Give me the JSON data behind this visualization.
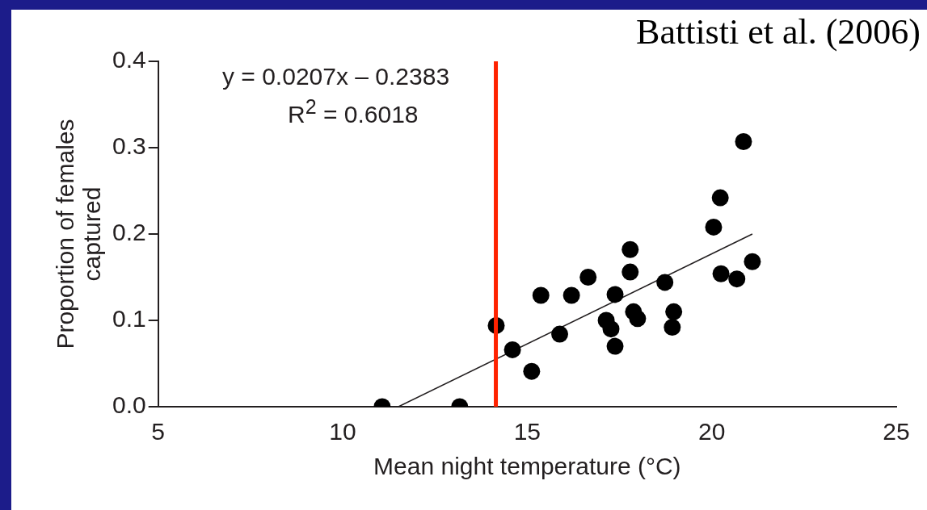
{
  "chart_data": {
    "type": "scatter",
    "xlabel": "Mean night temperature (°C)",
    "ylabel": "Proportion of females captured",
    "annotations": [
      "Battisti et al. (2006)",
      "y = 0.0207x – 0.2383",
      "R$^{2}$ = 0.6018"
    ],
    "series": [
      {
        "color": "#000000",
        "marker": "circle",
        "x": [
          11.07,
          13.17,
          14.16,
          14.6,
          15.12,
          15.37,
          15.88,
          16.2,
          16.65,
          17.14,
          17.27,
          17.38,
          17.38,
          17.79,
          17.79,
          17.88,
          17.99,
          18.73,
          18.97,
          18.93,
          20.05,
          20.23,
          20.25,
          20.68,
          20.86,
          21.1
        ],
        "values": [
          0,
          0,
          0.094,
          0.066,
          0.041,
          0.129,
          0.084,
          0.129,
          0.15,
          0.1,
          0.09,
          0.13,
          0.07,
          0.182,
          0.156,
          0.11,
          0.102,
          0.144,
          0.11,
          0.092,
          0.208,
          0.242,
          0.154,
          0.148,
          0.307,
          0.168
        ]
      },
      {
        "type": "line",
        "color": "#231f20",
        "marker": "none",
        "x": [
          11.51,
          21.1
        ],
        "values": [
          0,
          0.2
        ]
      }
    ],
    "ref_lines": [
      {
        "axis": "x",
        "value": 14.15,
        "color": "#ff2200"
      }
    ],
    "xlim": [
      5,
      25
    ],
    "xticks": [
      5,
      10,
      15,
      20,
      25
    ],
    "ylim": [
      0,
      0.4
    ],
    "yticks": [
      {
        "value": 0,
        "label": "0.0"
      },
      0.1,
      0.2,
      0.3,
      0.4
    ],
    "grid": false,
    "legend": false
  }
}
